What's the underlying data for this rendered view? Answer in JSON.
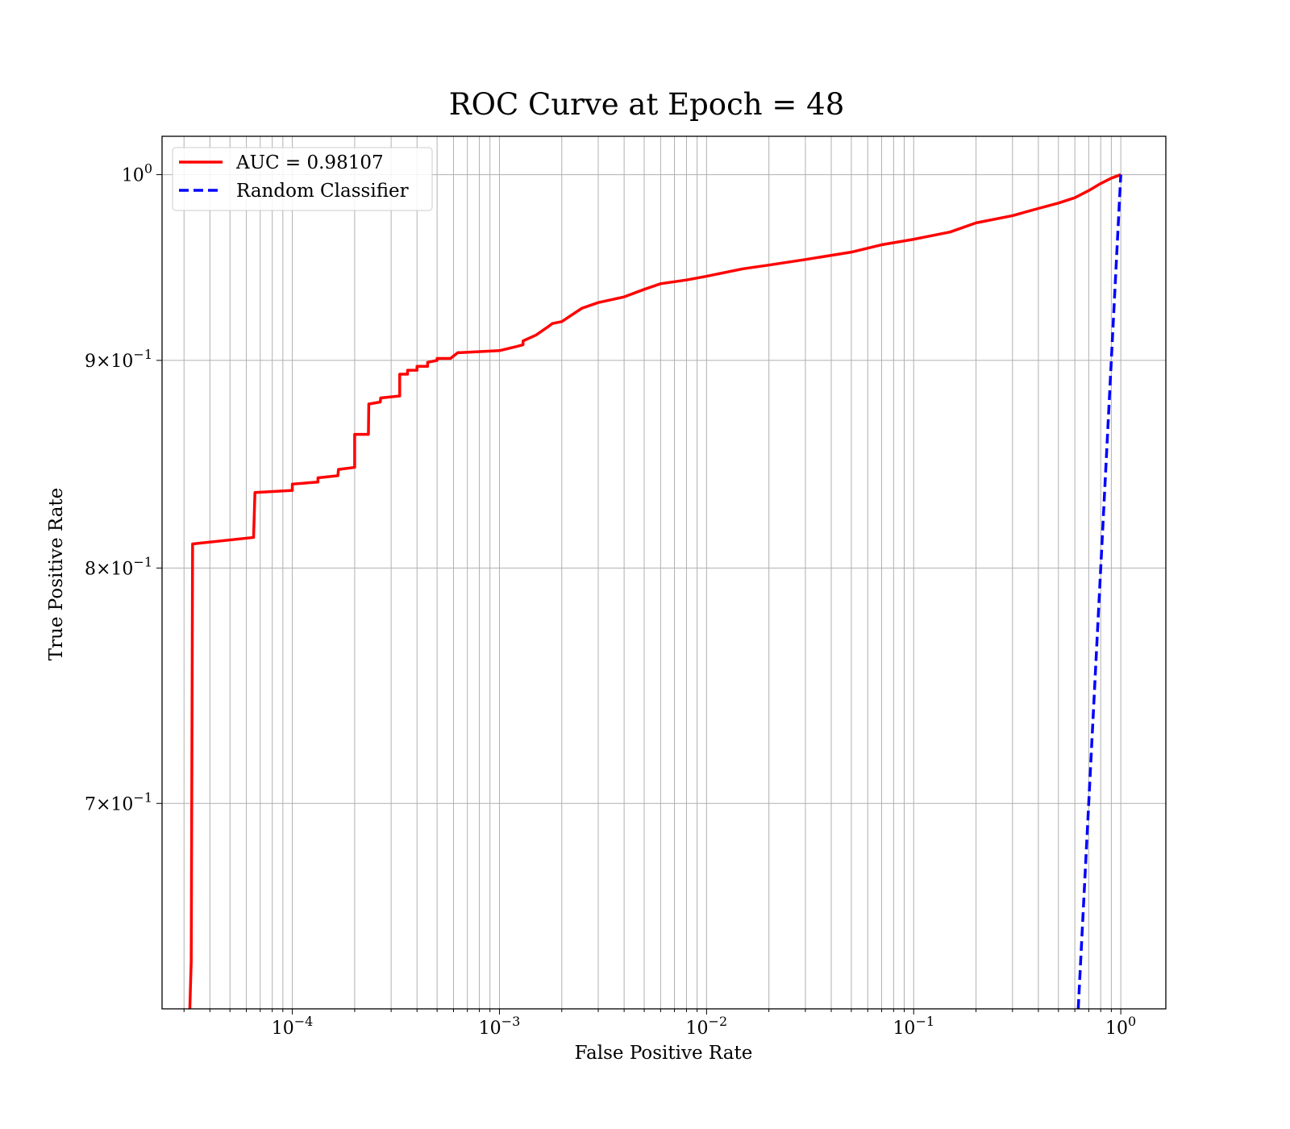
{
  "chart_data": {
    "type": "line",
    "title": "ROC Curve at Epoch = 48",
    "xlabel": "False Positive Rate",
    "ylabel": "True Positive Rate",
    "xscale": "log",
    "yscale": "log",
    "xlim": [
      2.35e-05,
      1.65
    ],
    "ylim": [
      0.623,
      1.022
    ],
    "grid": "on (major and minor, both axes)",
    "legend_position": "top-left",
    "x_tick_labels": [
      {
        "value": 0.0001,
        "base": "10",
        "exp": "−4"
      },
      {
        "value": 0.001,
        "base": "10",
        "exp": "−3"
      },
      {
        "value": 0.01,
        "base": "10",
        "exp": "−2"
      },
      {
        "value": 0.1,
        "base": "10",
        "exp": "−1"
      },
      {
        "value": 1,
        "base": "10",
        "exp": "0"
      }
    ],
    "y_tick_labels": [
      {
        "value": 1.0,
        "mant": "",
        "base": "10",
        "exp": "0"
      },
      {
        "value": 0.9,
        "mant": "9×",
        "base": "10",
        "exp": "−1"
      },
      {
        "value": 0.8,
        "mant": "8×",
        "base": "10",
        "exp": "−1"
      },
      {
        "value": 0.7,
        "mant": "7×",
        "base": "10",
        "exp": "−1"
      }
    ],
    "series": [
      {
        "name": "AUC = 0.98107",
        "color": "#ff0000",
        "style": "solid",
        "x": [
          3.2e-05,
          3.25e-05,
          3.3e-05,
          6.5e-05,
          6.6e-05,
          0.0001,
          0.0001,
          0.000133,
          0.000133,
          0.000166,
          0.000167,
          0.0002,
          0.0002,
          0.000233,
          0.000234,
          0.000266,
          0.000267,
          0.00033,
          0.00033,
          0.00036,
          0.00036,
          0.0004,
          0.0004,
          0.00045,
          0.00045,
          0.0005,
          0.0005,
          0.00058,
          0.00063,
          0.00065,
          0.001,
          0.0012,
          0.0013,
          0.0013,
          0.0015,
          0.0017,
          0.0018,
          0.002,
          0.0022,
          0.0025,
          0.003,
          0.004,
          0.005,
          0.006,
          0.008,
          0.01,
          0.015,
          0.02,
          0.03,
          0.05,
          0.07,
          0.1,
          0.15,
          0.2,
          0.3,
          0.4,
          0.5,
          0.6,
          0.7,
          0.8,
          0.9,
          1.0
        ],
        "y": [
          0.623,
          0.64,
          0.811,
          0.814,
          0.835,
          0.836,
          0.839,
          0.84,
          0.842,
          0.843,
          0.846,
          0.847,
          0.863,
          0.863,
          0.878,
          0.879,
          0.881,
          0.882,
          0.893,
          0.893,
          0.895,
          0.895,
          0.897,
          0.897,
          0.899,
          0.9,
          0.901,
          0.901,
          0.904,
          0.904,
          0.905,
          0.907,
          0.908,
          0.91,
          0.913,
          0.917,
          0.919,
          0.92,
          0.923,
          0.927,
          0.93,
          0.933,
          0.937,
          0.94,
          0.942,
          0.944,
          0.948,
          0.95,
          0.953,
          0.957,
          0.961,
          0.964,
          0.968,
          0.973,
          0.977,
          0.981,
          0.984,
          0.987,
          0.991,
          0.995,
          0.998,
          1.0
        ]
      },
      {
        "name": "Random Classifier",
        "color": "#0000ff",
        "style": "dashed",
        "x": [
          0.623,
          0.7,
          0.8,
          0.9,
          1.0
        ],
        "y": [
          0.623,
          0.7,
          0.8,
          0.9,
          1.0
        ]
      }
    ]
  }
}
